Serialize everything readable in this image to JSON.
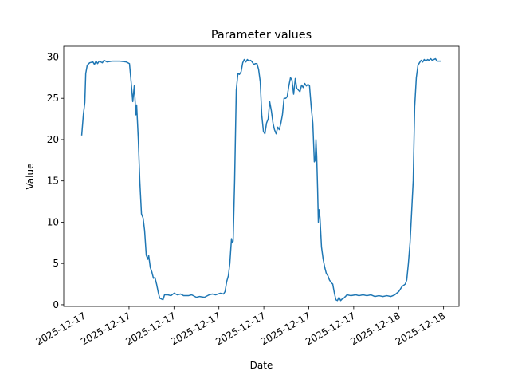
{
  "chart_data": {
    "type": "line",
    "title": "Parameter values",
    "x_label": "Date",
    "y_label": "Value",
    "x": [
      2.84,
      2.95,
      3.05,
      3.11,
      3.21,
      3.37,
      3.59,
      3.69,
      3.8,
      3.9,
      4.01,
      4.22,
      4.33,
      4.54,
      4.86,
      5.39,
      5.82,
      6.03,
      6.14,
      6.25,
      6.35,
      6.46,
      6.51,
      6.62,
      6.72,
      6.83,
      6.94,
      7.04,
      7.15,
      7.26,
      7.31,
      7.42,
      7.52,
      7.63,
      7.73,
      7.84,
      7.95,
      8.05,
      8.27,
      8.37,
      8.59,
      8.8,
      9.01,
      9.22,
      9.44,
      9.65,
      9.97,
      10.18,
      10.5,
      10.71,
      11.03,
      11.35,
      11.56,
      11.78,
      12.1,
      12.31,
      12.41,
      12.52,
      12.63,
      12.73,
      12.84,
      12.89,
      12.95,
      13.05,
      13.16,
      13.27,
      13.37,
      13.48,
      13.59,
      13.69,
      13.8,
      13.9,
      14.01,
      14.12,
      14.22,
      14.33,
      14.44,
      14.54,
      14.65,
      14.76,
      14.86,
      14.97,
      15.07,
      15.18,
      15.29,
      15.39,
      15.5,
      15.61,
      15.71,
      15.82,
      15.93,
      16.03,
      16.14,
      16.24,
      16.35,
      16.46,
      16.56,
      16.67,
      16.78,
      16.88,
      16.99,
      17.1,
      17.2,
      17.31,
      17.41,
      17.52,
      17.63,
      17.73,
      17.84,
      17.95,
      18.05,
      18.16,
      18.27,
      18.37,
      18.43,
      18.48,
      18.53,
      18.59,
      18.64,
      18.69,
      18.75,
      18.85,
      18.96,
      19.07,
      19.17,
      19.28,
      19.38,
      19.49,
      19.6,
      19.7,
      19.81,
      19.91,
      20.02,
      20.13,
      20.23,
      20.34,
      20.45,
      20.55,
      20.82,
      21.14,
      21.35,
      21.62,
      21.88,
      22.15,
      22.41,
      22.68,
      22.95,
      23.21,
      23.48,
      23.74,
      24.01,
      24.22,
      24.44,
      24.54,
      24.65,
      24.76,
      24.86,
      24.97,
      25.07,
      25.18,
      25.29,
      25.39,
      25.5,
      25.61,
      25.71,
      25.82,
      25.93,
      26.03,
      26.14,
      26.24,
      26.35,
      26.46,
      26.56,
      26.67,
      26.83
    ],
    "series": [
      {
        "name": "Value",
        "color": "#1f77b4",
        "values": [
          20.5,
          23,
          24.5,
          28,
          29,
          29.3,
          29.4,
          29.1,
          29.5,
          29.2,
          29.5,
          29.3,
          29.6,
          29.4,
          29.5,
          29.5,
          29.4,
          29.2,
          27,
          24.6,
          26.5,
          23,
          24.2,
          20,
          15,
          11,
          10.5,
          9,
          6,
          5.5,
          6,
          4.5,
          4,
          3.2,
          3.3,
          2.5,
          1.5,
          0.8,
          0.6,
          1.2,
          1.2,
          1.1,
          1.4,
          1.2,
          1.3,
          1.1,
          1.1,
          1.2,
          0.9,
          1.0,
          0.9,
          1.2,
          1.3,
          1.2,
          1.4,
          1.3,
          1.6,
          2.8,
          3.5,
          5,
          8,
          7.5,
          7.7,
          15,
          26,
          28,
          27.9,
          28.2,
          29.3,
          29.7,
          29.4,
          29.7,
          29.5,
          29.6,
          29.4,
          29.1,
          29.2,
          29.2,
          28.5,
          27,
          23,
          21,
          20.7,
          22,
          22.5,
          24.6,
          23.5,
          22,
          21.2,
          20.7,
          21.5,
          21.2,
          22,
          23,
          25,
          25,
          25.2,
          26.5,
          27.5,
          27.2,
          25.5,
          27.4,
          26.2,
          26,
          25.8,
          26.6,
          26.3,
          26.8,
          26.5,
          26.7,
          26.5,
          24,
          22,
          17.3,
          17.5,
          20,
          18,
          14,
          10,
          11.5,
          10.5,
          7,
          5.5,
          4.5,
          3.8,
          3.5,
          3,
          2.7,
          2.5,
          1.5,
          0.6,
          0.5,
          0.9,
          0.5,
          0.7,
          0.8,
          1,
          1.2,
          1.1,
          1.2,
          1.1,
          1.2,
          1.1,
          1.2,
          1.0,
          1.1,
          1.0,
          1.1,
          1.0,
          1.2,
          1.6,
          2.2,
          2.5,
          3,
          5,
          7.5,
          11,
          15,
          24,
          27.5,
          29,
          29.3,
          29.6,
          29.4,
          29.7,
          29.5,
          29.7,
          29.6,
          29.8,
          29.6,
          29.7,
          29.8,
          29.5,
          29.5,
          29.5
        ]
      }
    ],
    "xlim": [
      1.64,
      28.03
    ],
    "xticks": [
      {
        "value": 3,
        "label": "2025-12-17"
      },
      {
        "value": 6,
        "label": "2025-12-17"
      },
      {
        "value": 9,
        "label": "2025-12-17"
      },
      {
        "value": 12,
        "label": "2025-12-17"
      },
      {
        "value": 15,
        "label": "2025-12-17"
      },
      {
        "value": 18,
        "label": "2025-12-17"
      },
      {
        "value": 21,
        "label": "2025-12-17"
      },
      {
        "value": 24,
        "label": "2025-12-18"
      },
      {
        "value": 27,
        "label": "2025-12-18"
      }
    ],
    "ylim": [
      -0.2,
      31.3
    ],
    "yticks": [
      0,
      5,
      10,
      15,
      20,
      25,
      30
    ]
  }
}
